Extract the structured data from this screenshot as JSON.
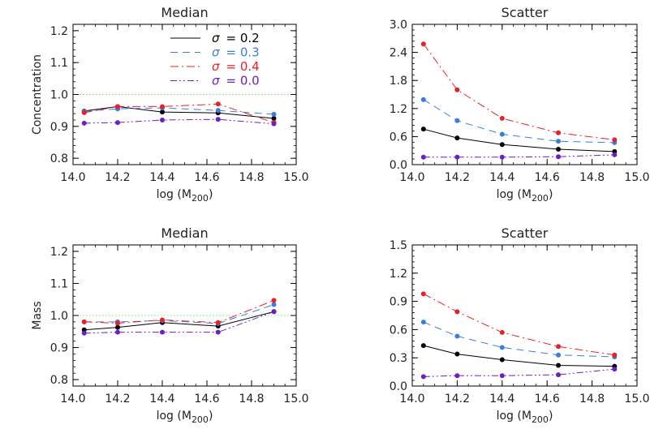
{
  "figure": {
    "legend": {
      "entries": [
        {
          "symbol": "σ",
          "text": "= 0.2",
          "color": "#000000",
          "dash": "solid"
        },
        {
          "symbol": "σ",
          "text": "= 0.3",
          "color": "#3b7ddd",
          "dash": "dashed"
        },
        {
          "symbol": "σ",
          "text": "= 0.4",
          "color": "#e8202a",
          "dash": "dashdot"
        },
        {
          "symbol": "σ",
          "text": "= 0.0",
          "color": "#6a1fc9",
          "dash": "dashdotdot"
        }
      ]
    },
    "colors": {
      "s02": "#000000",
      "s03": "#3b7ddd",
      "s04": "#e8202a",
      "s00": "#6a1fc9",
      "reference": "#7ce07c"
    }
  },
  "chart_data": [
    {
      "id": "conc-median",
      "type": "line",
      "title": "Median",
      "xlabel": "log (M",
      "xlabel_sub": "200",
      "xlabel_close": ")",
      "ylabel": "Concentration",
      "xlim": [
        14.0,
        15.0
      ],
      "ylim": [
        0.78,
        1.22
      ],
      "xticks": [
        "14.0",
        "14.2",
        "14.4",
        "14.6",
        "14.8",
        "15.0"
      ],
      "yticks": [
        "0.8",
        "0.9",
        "1.0",
        "1.1",
        "1.2"
      ],
      "reference_line": 1.0,
      "x": [
        14.05,
        14.2,
        14.4,
        14.65,
        14.9
      ],
      "series": [
        {
          "name": "σ = 0.2",
          "values": [
            0.948,
            0.962,
            0.945,
            0.942,
            0.925
          ]
        },
        {
          "name": "σ = 0.3",
          "values": [
            0.947,
            0.955,
            0.958,
            0.95,
            0.938
          ]
        },
        {
          "name": "σ = 0.4",
          "values": [
            0.943,
            0.962,
            0.962,
            0.97,
            0.912
          ]
        },
        {
          "name": "σ = 0.0",
          "values": [
            0.91,
            0.912,
            0.92,
            0.922,
            0.908
          ]
        }
      ]
    },
    {
      "id": "conc-scatter",
      "type": "line",
      "title": "Scatter",
      "xlabel": "log (M",
      "xlabel_sub": "200",
      "xlabel_close": ")",
      "ylabel": "",
      "xlim": [
        14.0,
        15.0
      ],
      "ylim": [
        0.0,
        3.0
      ],
      "xticks": [
        "14.0",
        "14.2",
        "14.4",
        "14.6",
        "14.8",
        "15.0"
      ],
      "yticks": [
        "0.0",
        "0.6",
        "1.2",
        "1.8",
        "2.4",
        "3.0"
      ],
      "reference_line": null,
      "x": [
        14.05,
        14.2,
        14.4,
        14.65,
        14.9
      ],
      "series": [
        {
          "name": "σ = 0.2",
          "values": [
            0.76,
            0.57,
            0.43,
            0.33,
            0.28
          ]
        },
        {
          "name": "σ = 0.3",
          "values": [
            1.39,
            0.94,
            0.65,
            0.5,
            0.47
          ]
        },
        {
          "name": "σ = 0.4",
          "values": [
            2.58,
            1.6,
            0.99,
            0.68,
            0.53
          ]
        },
        {
          "name": "σ = 0.0",
          "values": [
            0.16,
            0.16,
            0.16,
            0.17,
            0.21
          ]
        }
      ]
    },
    {
      "id": "mass-median",
      "type": "line",
      "title": "Median",
      "xlabel": "log (M",
      "xlabel_sub": "200",
      "xlabel_close": ")",
      "ylabel": "Mass",
      "xlim": [
        14.0,
        15.0
      ],
      "ylim": [
        0.78,
        1.22
      ],
      "xticks": [
        "14.0",
        "14.2",
        "14.4",
        "14.6",
        "14.8",
        "15.0"
      ],
      "yticks": [
        "0.8",
        "0.9",
        "1.0",
        "1.1",
        "1.2"
      ],
      "reference_line": 1.0,
      "x": [
        14.05,
        14.2,
        14.4,
        14.65,
        14.9
      ],
      "series": [
        {
          "name": "σ = 0.2",
          "values": [
            0.955,
            0.963,
            0.978,
            0.967,
            1.012
          ]
        },
        {
          "name": "σ = 0.3",
          "values": [
            0.98,
            0.98,
            0.984,
            0.975,
            1.034
          ]
        },
        {
          "name": "σ = 0.4",
          "values": [
            0.98,
            0.976,
            0.986,
            0.978,
            1.047
          ]
        },
        {
          "name": "σ = 0.0",
          "values": [
            0.945,
            0.948,
            0.948,
            0.948,
            1.012
          ]
        }
      ]
    },
    {
      "id": "mass-scatter",
      "type": "line",
      "title": "Scatter",
      "xlabel": "log (M",
      "xlabel_sub": "200",
      "xlabel_close": ")",
      "ylabel": "",
      "xlim": [
        14.0,
        15.0
      ],
      "ylim": [
        0.0,
        1.5
      ],
      "xticks": [
        "14.0",
        "14.2",
        "14.4",
        "14.6",
        "14.8",
        "15.0"
      ],
      "yticks": [
        "0.0",
        "0.3",
        "0.6",
        "0.9",
        "1.2",
        "1.5"
      ],
      "reference_line": null,
      "x": [
        14.05,
        14.2,
        14.4,
        14.65,
        14.9
      ],
      "series": [
        {
          "name": "σ = 0.2",
          "values": [
            0.43,
            0.34,
            0.28,
            0.22,
            0.21
          ]
        },
        {
          "name": "σ = 0.3",
          "values": [
            0.68,
            0.53,
            0.41,
            0.33,
            0.31
          ]
        },
        {
          "name": "σ = 0.4",
          "values": [
            0.98,
            0.79,
            0.57,
            0.42,
            0.33
          ]
        },
        {
          "name": "σ = 0.0",
          "values": [
            0.1,
            0.11,
            0.11,
            0.12,
            0.18
          ]
        }
      ]
    }
  ]
}
